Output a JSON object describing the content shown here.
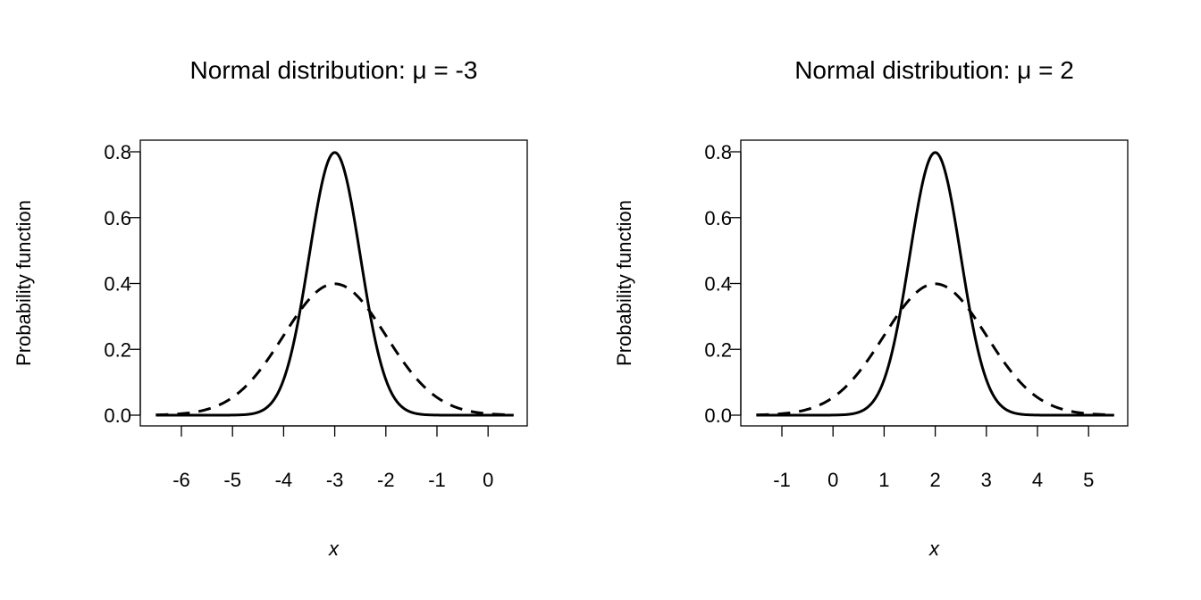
{
  "chart_data": [
    {
      "type": "line",
      "title": "Normal distribution:  μ = -3",
      "xlabel": "x",
      "ylabel": "Probability function",
      "xlim": [
        -6.5,
        0.5
      ],
      "ylim": [
        0,
        0.8
      ],
      "x_ticks": [
        -6,
        -5,
        -4,
        -3,
        -2,
        -1,
        0
      ],
      "y_ticks": [
        "0.0",
        "0.2",
        "0.4",
        "0.6",
        "0.8"
      ],
      "grid": false,
      "series": [
        {
          "distribution": "normal",
          "mean": -3,
          "sd": 0.5,
          "line_style": "solid"
        },
        {
          "distribution": "normal",
          "mean": -3,
          "sd": 1,
          "line_style": "dashed"
        }
      ]
    },
    {
      "type": "line",
      "title": "Normal distribution:  μ = 2",
      "xlabel": "x",
      "ylabel": "Probability function",
      "xlim": [
        -1.5,
        5.5
      ],
      "ylim": [
        0,
        0.8
      ],
      "x_ticks": [
        -1,
        0,
        1,
        2,
        3,
        4,
        5
      ],
      "y_ticks": [
        "0.0",
        "0.2",
        "0.4",
        "0.6",
        "0.8"
      ],
      "grid": false,
      "series": [
        {
          "distribution": "normal",
          "mean": 2,
          "sd": 0.5,
          "line_style": "solid"
        },
        {
          "distribution": "normal",
          "mean": 2,
          "sd": 1,
          "line_style": "dashed"
        }
      ]
    }
  ],
  "colors": {
    "line": "#000000",
    "background": "#ffffff"
  }
}
